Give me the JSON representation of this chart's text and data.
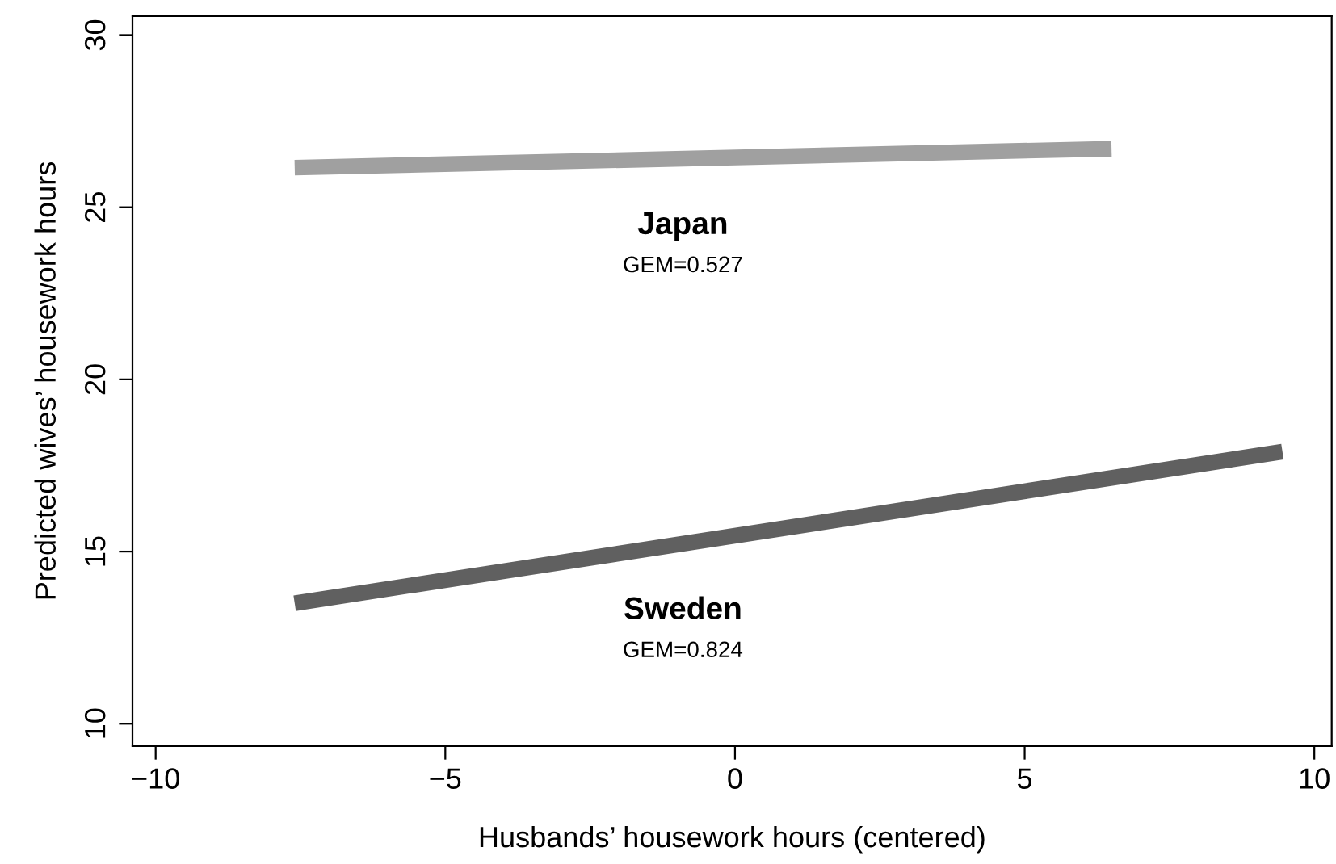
{
  "chart_data": {
    "type": "line",
    "xlabel": "Husbands’ housework hours (centered)",
    "ylabel": "Predicted wives’ housework hours",
    "series": [
      {
        "color": "#a0a0a0",
        "x": [
          -7.6,
          6.5
        ],
        "values": [
          26.15,
          26.7
        ]
      },
      {
        "color": "#606060",
        "x": [
          -7.6,
          9.45
        ],
        "values": [
          13.5,
          17.9
        ]
      }
    ],
    "xlim": [
      -10.4,
      10.3
    ],
    "xticks": [
      {
        "value": -10,
        "label": "−10"
      },
      {
        "value": -5,
        "label": "−5"
      },
      0,
      5,
      10
    ],
    "ylim": [
      9.35,
      30.55
    ],
    "yticks": [
      10,
      15,
      20,
      25,
      30
    ],
    "grid": false,
    "marker": "none",
    "line_style": "solid",
    "annotations": [
      "Japan",
      "GEM=0.527",
      "Sweden",
      "GEM=0.824"
    ]
  }
}
